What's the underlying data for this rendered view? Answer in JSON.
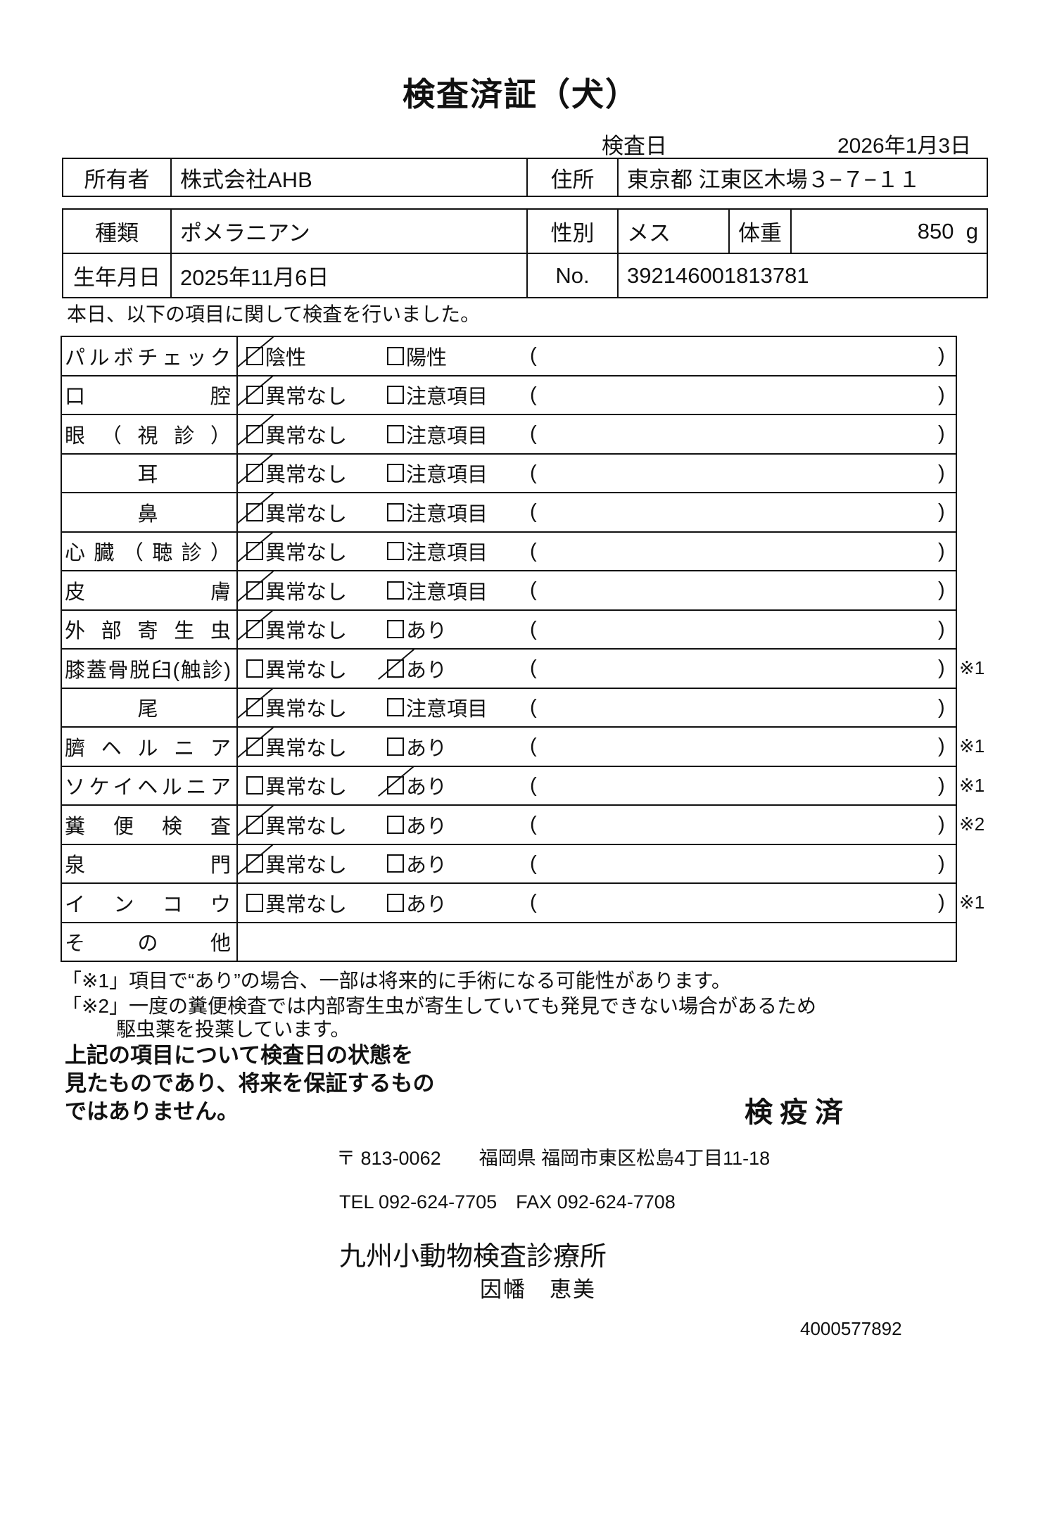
{
  "title": "検査済証（犬）",
  "exam_date": {
    "label": "検査日",
    "value": "2026年1月3日"
  },
  "owner": {
    "label": "所有者",
    "value": "株式会社AHB",
    "address_label": "住所",
    "address": "東京都 江東区木場３−７−１１"
  },
  "pet": {
    "breed_label": "種類",
    "breed": "ポメラニアン",
    "sex_label": "性別",
    "sex": "メス",
    "weight_label": "体重",
    "weight": "850",
    "weight_unit": "g",
    "birth_label": "生年月日",
    "birth": "2025年11月6日",
    "no_label": "No.",
    "no": "392146001813781"
  },
  "intro": "本日、以下の項目に関して検査を行いました。",
  "paren_open": "(",
  "paren_close": ")",
  "items": [
    {
      "label": "パルボチェック",
      "opt1": "陰性",
      "opt2": "陽性",
      "checked": 1,
      "mark": ""
    },
    {
      "label": "口腔",
      "opt1": "異常なし",
      "opt2": "注意項目",
      "checked": 1,
      "mark": ""
    },
    {
      "label": "眼（視診）",
      "opt1": "異常なし",
      "opt2": "注意項目",
      "checked": 1,
      "mark": ""
    },
    {
      "label": "耳",
      "opt1": "異常なし",
      "opt2": "注意項目",
      "checked": 1,
      "mark": "",
      "center": true
    },
    {
      "label": "鼻",
      "opt1": "異常なし",
      "opt2": "注意項目",
      "checked": 1,
      "mark": "",
      "center": true
    },
    {
      "label": "心臓（聴診）",
      "opt1": "異常なし",
      "opt2": "注意項目",
      "checked": 1,
      "mark": ""
    },
    {
      "label": "皮膚",
      "opt1": "異常なし",
      "opt2": "注意項目",
      "checked": 1,
      "mark": ""
    },
    {
      "label": "外部寄生虫",
      "opt1": "異常なし",
      "opt2": "あり",
      "checked": 1,
      "mark": ""
    },
    {
      "label": "膝蓋骨脱臼(触診)",
      "opt1": "異常なし",
      "opt2": "あり",
      "checked": 2,
      "mark": "※1"
    },
    {
      "label": "尾",
      "opt1": "異常なし",
      "opt2": "注意項目",
      "checked": 1,
      "mark": "",
      "center": true
    },
    {
      "label": "臍ヘルニア",
      "opt1": "異常なし",
      "opt2": "あり",
      "checked": 1,
      "mark": "※1"
    },
    {
      "label": "ソケイヘルニア",
      "opt1": "異常なし",
      "opt2": "あり",
      "checked": 2,
      "mark": "※1"
    },
    {
      "label": "糞便検査",
      "opt1": "異常なし",
      "opt2": "あり",
      "checked": 1,
      "mark": "※2"
    },
    {
      "label": "泉門",
      "opt1": "異常なし",
      "opt2": "あり",
      "checked": 1,
      "mark": ""
    },
    {
      "label": "インコウ",
      "opt1": "異常なし",
      "opt2": "あり",
      "checked": 0,
      "mark": "※1"
    }
  ],
  "other_label": "その他",
  "notes": [
    "「※1」項目で“あり”の場合、一部は将来的に手術になる可能性があります。",
    "「※2」一度の糞便検査では内部寄生虫が寄生していても発見できない場合があるため",
    "駆虫薬を投薬しています。"
  ],
  "disclaimer": [
    "上記の項目について検査日の状態を",
    "見たものであり、将来を保証するもの",
    "ではありません。"
  ],
  "stamp": "検疫済",
  "clinic": {
    "address": "〒 813-0062　　福岡県 福岡市東区松島4丁目11-18",
    "tel": "TEL 092-624-7705　FAX 092-624-7708",
    "name": "九州小動物検査診療所",
    "person": "因幡　恵美"
  },
  "doc_code": "4000577892"
}
